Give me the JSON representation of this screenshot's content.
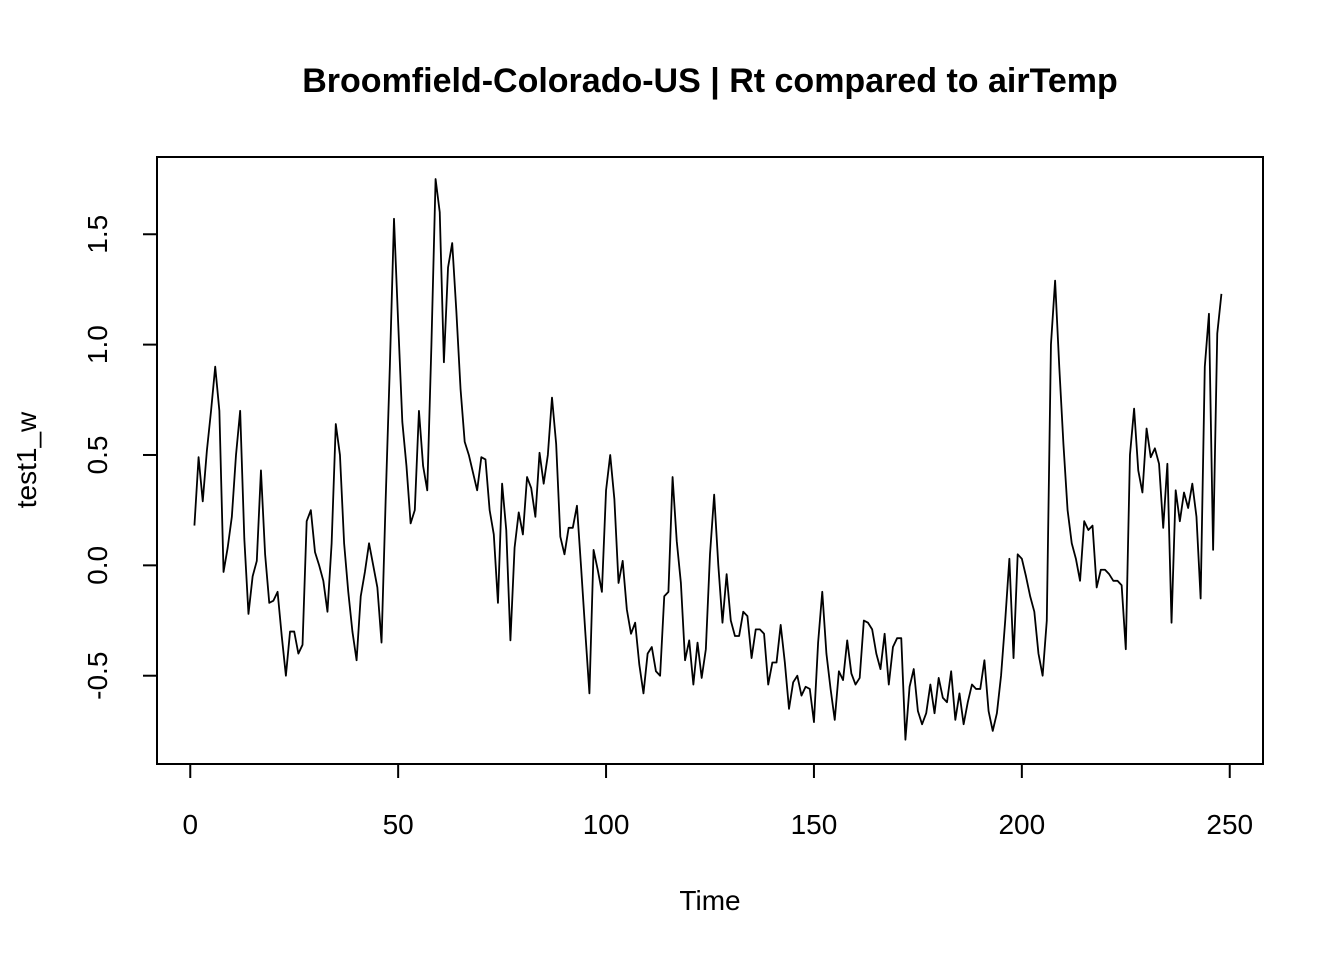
{
  "chart_data": {
    "type": "line",
    "title": "Broomfield-Colorado-US | Rt compared to airTemp",
    "xlabel": "Time",
    "ylabel": "test1_w",
    "xlim": [
      -8,
      258
    ],
    "ylim": [
      -0.9,
      1.85
    ],
    "x_ticks": [
      0,
      50,
      100,
      150,
      200,
      250
    ],
    "x_tick_labels": [
      "0",
      "50",
      "100",
      "150",
      "200",
      "250"
    ],
    "y_ticks": [
      -0.5,
      0.0,
      0.5,
      1.0,
      1.5
    ],
    "y_tick_labels": [
      "-0.5",
      "0.0",
      "0.5",
      "1.0",
      "1.5"
    ],
    "grid": false,
    "x_start": 1,
    "values": [
      0.18,
      0.49,
      0.29,
      0.52,
      0.7,
      0.9,
      0.7,
      -0.03,
      0.08,
      0.22,
      0.5,
      0.7,
      0.12,
      -0.22,
      -0.05,
      0.02,
      0.43,
      0.05,
      -0.17,
      -0.16,
      -0.12,
      -0.32,
      -0.5,
      -0.3,
      -0.3,
      -0.4,
      -0.36,
      0.2,
      0.25,
      0.06,
      0.0,
      -0.07,
      -0.21,
      0.1,
      0.64,
      0.5,
      0.1,
      -0.12,
      -0.3,
      -0.43,
      -0.14,
      -0.03,
      0.1,
      0.0,
      -0.1,
      -0.35,
      0.3,
      0.9,
      1.57,
      1.1,
      0.65,
      0.45,
      0.19,
      0.25,
      0.7,
      0.45,
      0.34,
      1.0,
      1.75,
      1.6,
      0.92,
      1.35,
      1.46,
      1.15,
      0.8,
      0.56,
      0.5,
      0.42,
      0.34,
      0.49,
      0.48,
      0.25,
      0.14,
      -0.17,
      0.37,
      0.16,
      -0.34,
      0.08,
      0.24,
      0.14,
      0.4,
      0.35,
      0.22,
      0.51,
      0.37,
      0.5,
      0.76,
      0.55,
      0.13,
      0.05,
      0.17,
      0.17,
      0.27,
      -0.01,
      -0.3,
      -0.58,
      0.07,
      -0.02,
      -0.12,
      0.34,
      0.5,
      0.3,
      -0.08,
      0.02,
      -0.2,
      -0.31,
      -0.26,
      -0.45,
      -0.58,
      -0.4,
      -0.37,
      -0.48,
      -0.5,
      -0.14,
      -0.12,
      0.4,
      0.11,
      -0.08,
      -0.43,
      -0.34,
      -0.54,
      -0.35,
      -0.51,
      -0.38,
      0.05,
      0.32,
      0.0,
      -0.26,
      -0.04,
      -0.25,
      -0.32,
      -0.32,
      -0.21,
      -0.23,
      -0.42,
      -0.29,
      -0.29,
      -0.31,
      -0.54,
      -0.44,
      -0.44,
      -0.27,
      -0.44,
      -0.65,
      -0.53,
      -0.5,
      -0.59,
      -0.55,
      -0.56,
      -0.71,
      -0.35,
      -0.12,
      -0.4,
      -0.56,
      -0.7,
      -0.48,
      -0.52,
      -0.34,
      -0.49,
      -0.54,
      -0.51,
      -0.25,
      -0.26,
      -0.29,
      -0.4,
      -0.47,
      -0.31,
      -0.54,
      -0.37,
      -0.33,
      -0.33,
      -0.79,
      -0.55,
      -0.47,
      -0.66,
      -0.72,
      -0.67,
      -0.54,
      -0.67,
      -0.51,
      -0.6,
      -0.62,
      -0.48,
      -0.7,
      -0.58,
      -0.72,
      -0.62,
      -0.54,
      -0.56,
      -0.56,
      -0.43,
      -0.66,
      -0.75,
      -0.67,
      -0.5,
      -0.25,
      0.03,
      -0.42,
      0.05,
      0.03,
      -0.05,
      -0.14,
      -0.21,
      -0.4,
      -0.5,
      -0.25,
      1.0,
      1.29,
      0.9,
      0.55,
      0.25,
      0.1,
      0.03,
      -0.07,
      0.2,
      0.16,
      0.18,
      -0.1,
      -0.02,
      -0.02,
      -0.04,
      -0.07,
      -0.07,
      -0.09,
      -0.38,
      0.5,
      0.71,
      0.43,
      0.33,
      0.62,
      0.49,
      0.53,
      0.46,
      0.17,
      0.46,
      -0.26,
      0.34,
      0.2,
      0.33,
      0.26,
      0.37,
      0.22,
      -0.15,
      0.9,
      1.14,
      0.07,
      1.05,
      1.23
    ]
  }
}
